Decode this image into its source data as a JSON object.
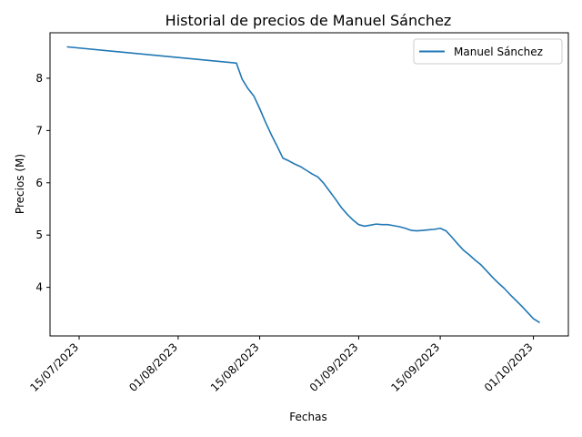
{
  "chart_data": {
    "type": "line",
    "title": "Historial de precios de Manuel Sánchez",
    "xlabel": "Fechas",
    "ylabel": "Precios (M)",
    "x_ticks": [
      "15/07/2023",
      "01/08/2023",
      "15/08/2023",
      "01/09/2023",
      "15/09/2023",
      "01/10/2023"
    ],
    "y_ticks": [
      "4",
      "5",
      "6",
      "7",
      "8"
    ],
    "y_tick_values": [
      4,
      5,
      6,
      7,
      8
    ],
    "ylim": [
      3.07,
      8.87
    ],
    "xlim": [
      "2023-07-10",
      "2023-10-07"
    ],
    "legend": {
      "position": "upper right"
    },
    "grid": false,
    "series": [
      {
        "name": "Manuel Sánchez",
        "color": "#1f77b4",
        "x": [
          "2023-07-13",
          "2023-08-11",
          "2023-08-12",
          "2023-08-13",
          "2023-08-14",
          "2023-08-15",
          "2023-08-16",
          "2023-08-17",
          "2023-08-18",
          "2023-08-19",
          "2023-08-20",
          "2023-08-21",
          "2023-08-22",
          "2023-08-23",
          "2023-08-24",
          "2023-08-25",
          "2023-08-26",
          "2023-08-27",
          "2023-08-28",
          "2023-08-29",
          "2023-08-30",
          "2023-08-31",
          "2023-09-01",
          "2023-09-02",
          "2023-09-03",
          "2023-09-04",
          "2023-09-05",
          "2023-09-06",
          "2023-09-07",
          "2023-09-08",
          "2023-09-09",
          "2023-09-10",
          "2023-09-11",
          "2023-09-12",
          "2023-09-13",
          "2023-09-14",
          "2023-09-15",
          "2023-09-16",
          "2023-09-17",
          "2023-09-18",
          "2023-09-19",
          "2023-09-20",
          "2023-09-21",
          "2023-09-22",
          "2023-09-23",
          "2023-09-24",
          "2023-09-25",
          "2023-09-26",
          "2023-09-27",
          "2023-09-28",
          "2023-09-29",
          "2023-09-30",
          "2023-10-01",
          "2023-10-02"
        ],
        "values": [
          8.6,
          8.29,
          7.98,
          7.8,
          7.66,
          7.42,
          7.16,
          6.92,
          6.7,
          6.47,
          6.42,
          6.36,
          6.31,
          6.24,
          6.17,
          6.11,
          5.99,
          5.84,
          5.69,
          5.53,
          5.4,
          5.29,
          5.2,
          5.17,
          5.19,
          5.21,
          5.2,
          5.2,
          5.18,
          5.16,
          5.13,
          5.09,
          5.08,
          5.09,
          5.1,
          5.11,
          5.13,
          5.08,
          4.96,
          4.83,
          4.71,
          4.62,
          4.52,
          4.43,
          4.31,
          4.19,
          4.08,
          3.98,
          3.86,
          3.75,
          3.64,
          3.52,
          3.4,
          3.33
        ]
      }
    ]
  }
}
